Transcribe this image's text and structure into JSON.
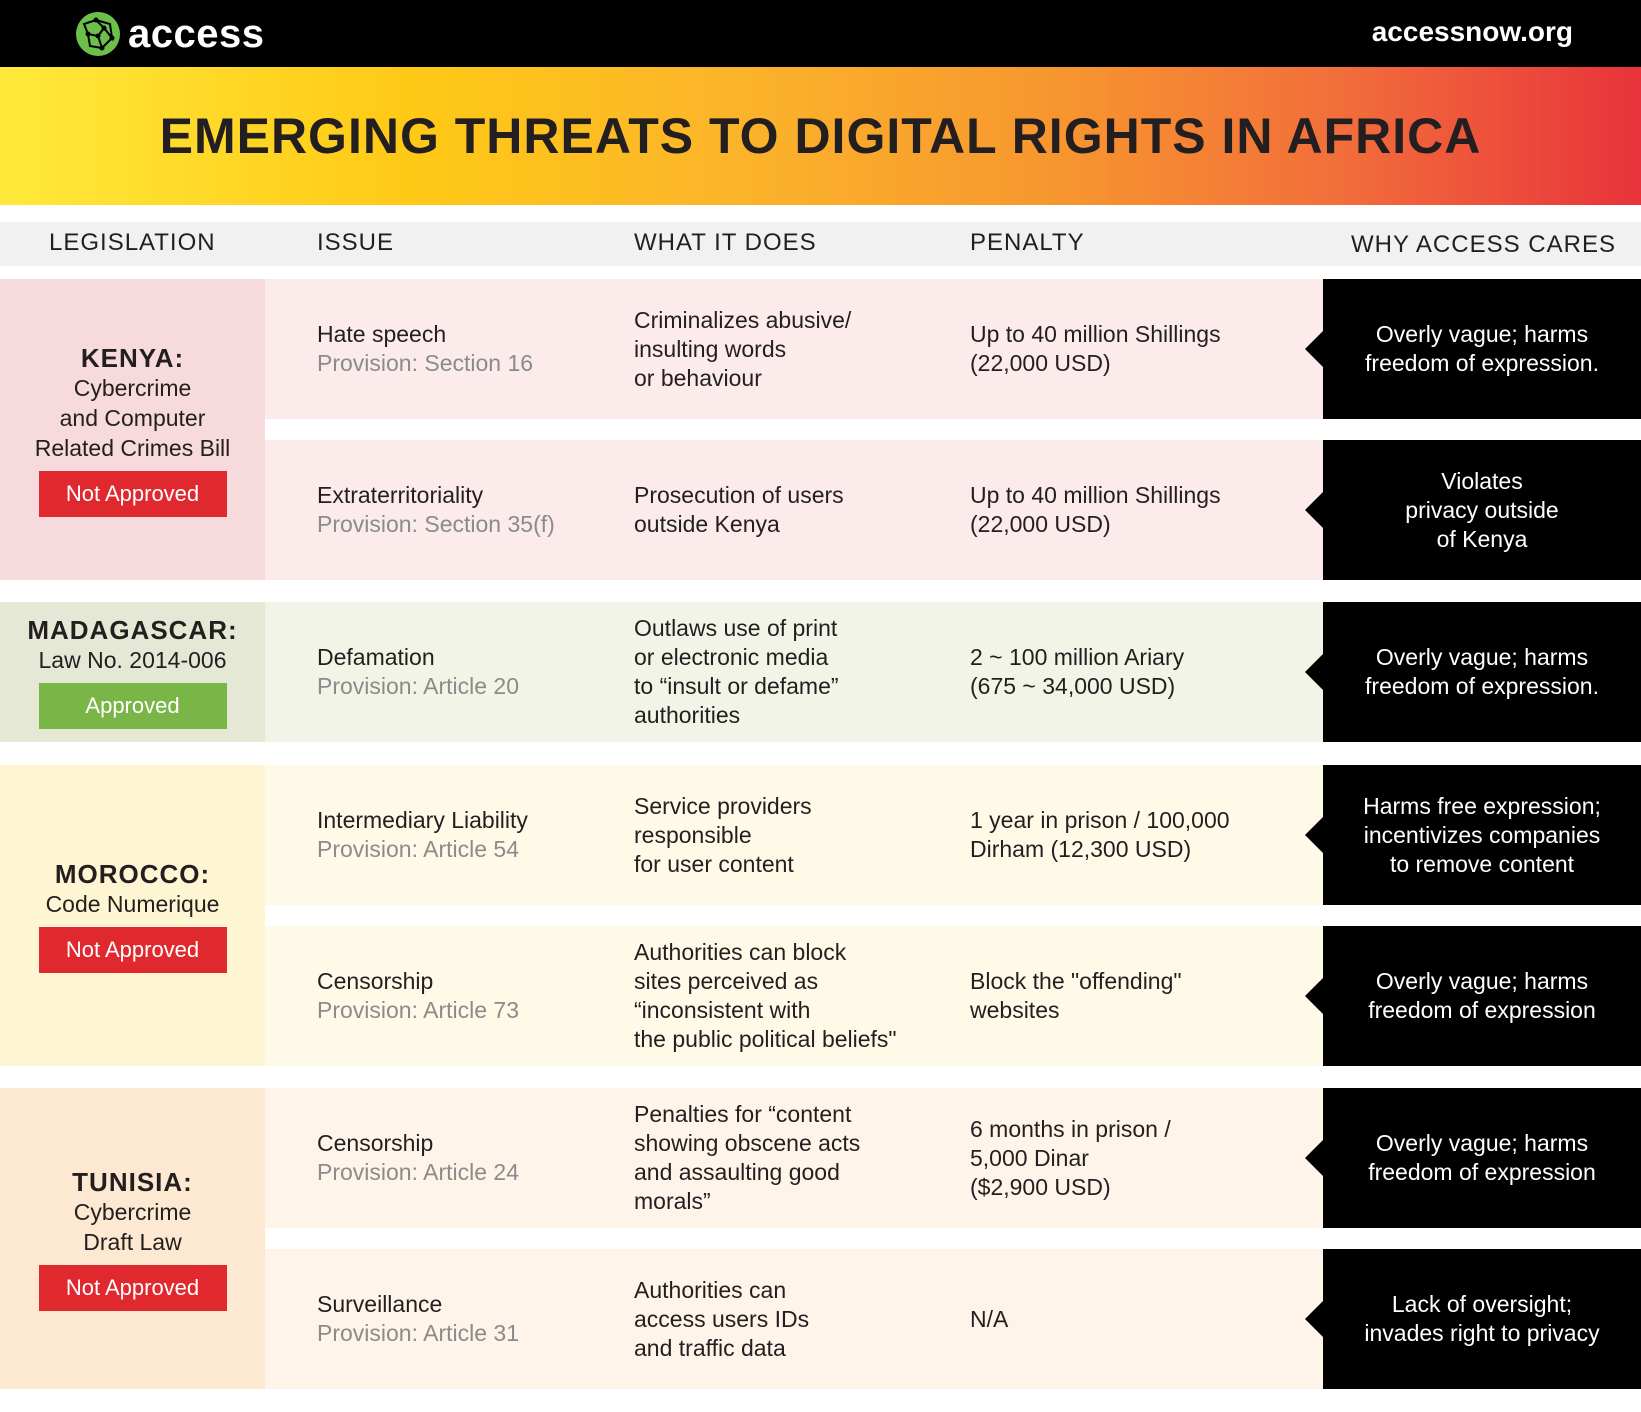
{
  "header": {
    "logo_text": "access",
    "site_url": "accessnow.org",
    "title": "EMERGING THREATS TO DIGITAL RIGHTS IN AFRICA"
  },
  "columns": {
    "legislation": "LEGISLATION",
    "issue": "ISSUE",
    "what": "WHAT IT DOES",
    "penalty": "PENALTY",
    "why": "WHY ACCESS CARES"
  },
  "colors": {
    "kenya_bg": "#f7dadb",
    "madagascar_bg": "#e5e8d4",
    "morocco_bg": "#fef5d3",
    "tunisia_bg": "#fde8d1",
    "not_approved": "#e0282f",
    "approved": "#7ab547"
  },
  "groups": [
    {
      "country": "KENYA:",
      "bill": [
        "Cybercrime",
        "and Computer",
        "Related Crimes Bill"
      ],
      "status": "Not Approved",
      "rows": [
        {
          "issue": "Hate speech",
          "provision": "Provision: Section 16",
          "what": [
            "Criminalizes abusive/",
            "insulting words",
            "or behaviour"
          ],
          "penalty": [
            "Up to 40 million Shillings",
            "(22,000 USD)"
          ],
          "why": [
            "Overly vague; harms",
            "freedom of expression."
          ]
        },
        {
          "issue": "Extraterritoriality",
          "provision": "Provision: Section 35(f)",
          "what": [
            "Prosecution of users",
            "outside Kenya"
          ],
          "penalty": [
            "Up to 40 million Shillings",
            "(22,000 USD)"
          ],
          "why": [
            "Violates",
            "privacy outside",
            "of Kenya"
          ]
        }
      ]
    },
    {
      "country": "MADAGASCAR:",
      "bill": [
        "Law No. 2014-006"
      ],
      "status": "Approved",
      "rows": [
        {
          "issue": "Defamation",
          "provision": "Provision: Article 20",
          "what": [
            "Outlaws use of print",
            "or electronic media",
            "to “insult or defame”",
            "authorities"
          ],
          "penalty": [
            "2 ~ 100 million Ariary",
            "(675 ~ 34,000 USD)"
          ],
          "why": [
            "Overly vague; harms",
            "freedom of expression."
          ]
        }
      ]
    },
    {
      "country": "MOROCCO:",
      "bill": [
        "Code Numerique"
      ],
      "status": "Not Approved",
      "rows": [
        {
          "issue": "Intermediary Liability",
          "provision": "Provision: Article 54",
          "what": [
            "Service providers",
            "responsible",
            "for user content"
          ],
          "penalty": [
            "1 year in prison / 100,000",
            "Dirham (12,300 USD)"
          ],
          "why": [
            "Harms free expression;",
            "incentivizes companies",
            "to remove content"
          ]
        },
        {
          "issue": "Censorship",
          "provision": "Provision: Article 73",
          "what": [
            "Authorities can block",
            "sites perceived as",
            "“inconsistent with",
            "the public political beliefs\""
          ],
          "penalty": [
            "Block the \"offending\"",
            "websites"
          ],
          "why": [
            "Overly vague; harms",
            "freedom of expression"
          ]
        }
      ]
    },
    {
      "country": "TUNISIA:",
      "bill": [
        "Cybercrime",
        "Draft Law"
      ],
      "status": "Not Approved",
      "rows": [
        {
          "issue": "Censorship",
          "provision": "Provision: Article 24",
          "what": [
            "Penalties for “content",
            "showing obscene acts",
            "and assaulting good",
            "morals”"
          ],
          "penalty": [
            "6 months in prison /",
            "5,000 Dinar",
            "($2,900 USD)"
          ],
          "why": [
            "Overly vague; harms",
            "freedom of expression"
          ]
        },
        {
          "issue": "Surveillance",
          "provision": "Provision: Article 31",
          "what": [
            "Authorities can",
            "access users IDs",
            "and traffic data"
          ],
          "penalty": [
            "N/A"
          ],
          "why": [
            "Lack of oversight;",
            "invades right to privacy"
          ]
        }
      ]
    }
  ]
}
